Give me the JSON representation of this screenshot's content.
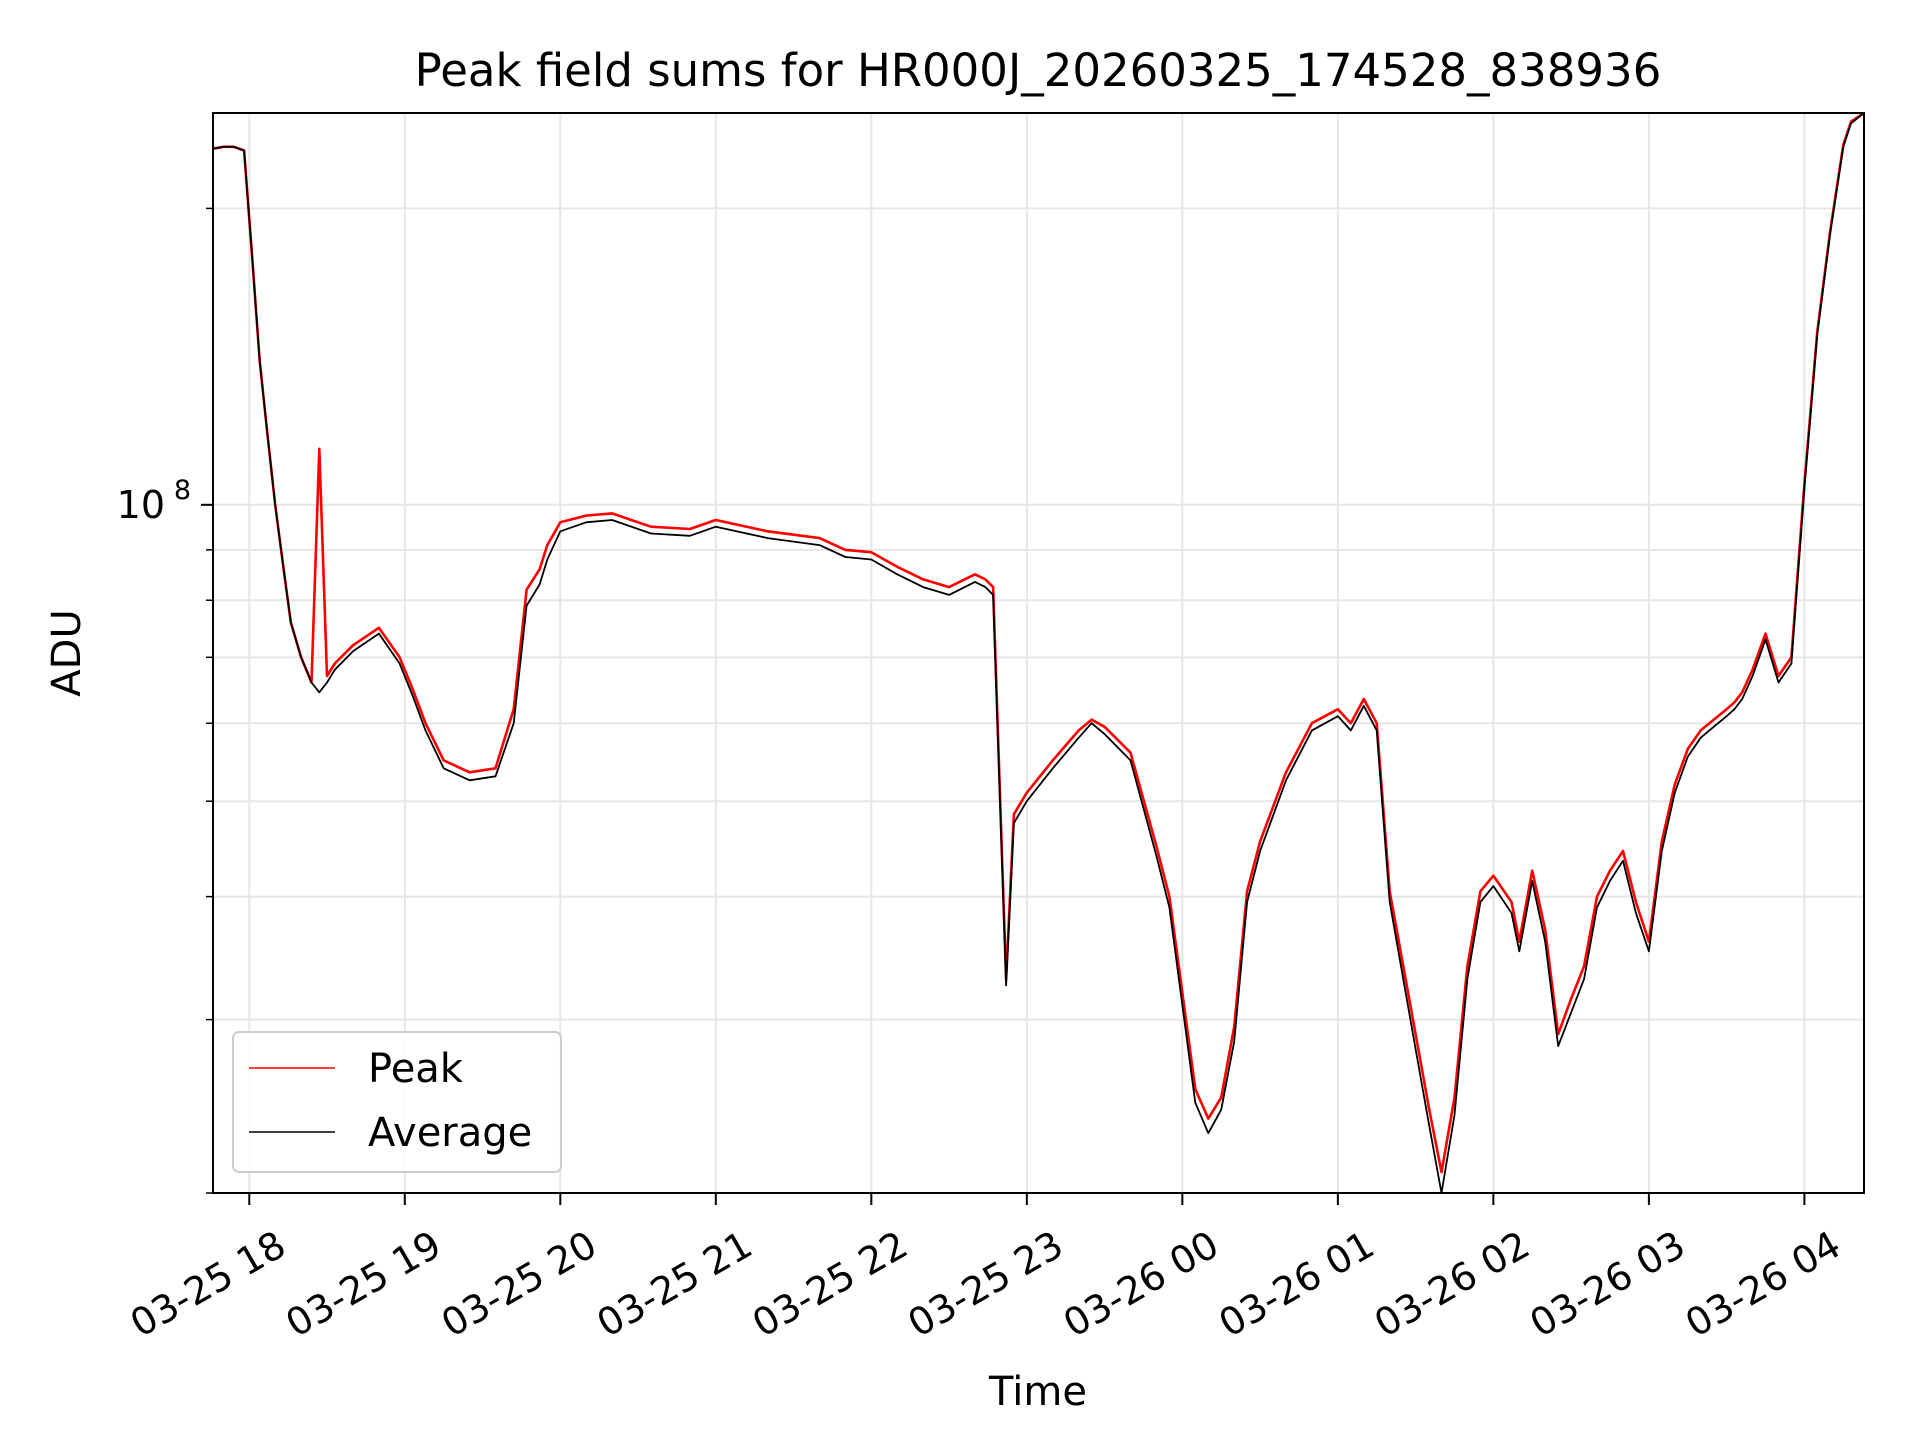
{
  "chart_data": {
    "type": "line",
    "title": "Peak field sums for HR000J_20260325_174528_838936",
    "xlabel": "Time",
    "ylabel": "ADU",
    "y_scale": "log",
    "ylim": [
      20000000,
      250000000
    ],
    "grid": true,
    "legend_position": "lower-left",
    "x_ticks": [
      "03-25 18",
      "03-25 19",
      "03-25 20",
      "03-25 21",
      "03-25 22",
      "03-25 23",
      "03-26 00",
      "03-26 01",
      "03-26 02",
      "03-26 03",
      "03-26 04"
    ],
    "y_major_ticks": [
      {
        "value": 100000000,
        "base": "10",
        "exp": "8"
      }
    ],
    "y_minor_ticks": [
      20000000,
      30000000,
      40000000,
      50000000,
      60000000,
      70000000,
      80000000,
      90000000,
      200000000
    ],
    "x_range": [
      "03-25 17:46",
      "03-26 04:23"
    ],
    "x": [
      "03-25 17:46",
      "03-25 17:50",
      "03-25 17:54",
      "03-25 17:58",
      "03-25 18:01",
      "03-25 18:04",
      "03-25 18:07",
      "03-25 18:10",
      "03-25 18:13",
      "03-25 18:16",
      "03-25 18:20",
      "03-25 18:24",
      "03-25 18:27",
      "03-25 18:30",
      "03-25 18:33",
      "03-25 18:40",
      "03-25 18:50",
      "03-25 18:58",
      "03-25 19:03",
      "03-25 19:08",
      "03-25 19:15",
      "03-25 19:25",
      "03-25 19:35",
      "03-25 19:42",
      "03-25 19:47",
      "03-25 19:52",
      "03-25 19:55",
      "03-25 20:00",
      "03-25 20:10",
      "03-25 20:20",
      "03-25 20:35",
      "03-25 20:50",
      "03-25 21:00",
      "03-25 21:20",
      "03-25 21:40",
      "03-25 21:50",
      "03-25 22:00",
      "03-25 22:10",
      "03-25 22:20",
      "03-25 22:30",
      "03-25 22:40",
      "03-25 22:44",
      "03-25 22:47",
      "03-25 22:52",
      "03-25 22:55",
      "03-25 23:00",
      "03-25 23:10",
      "03-25 23:20",
      "03-25 23:25",
      "03-25 23:30",
      "03-25 23:40",
      "03-25 23:50",
      "03-25 23:55",
      "03-26 00:05",
      "03-26 00:10",
      "03-26 00:15",
      "03-26 00:20",
      "03-26 00:25",
      "03-26 00:30",
      "03-26 00:40",
      "03-26 00:50",
      "03-26 01:00",
      "03-26 01:05",
      "03-26 01:10",
      "03-26 01:15",
      "03-26 01:20",
      "03-26 01:30",
      "03-26 01:35",
      "03-26 01:40",
      "03-26 01:45",
      "03-26 01:50",
      "03-26 01:55",
      "03-26 02:00",
      "03-26 02:07",
      "03-26 02:10",
      "03-26 02:15",
      "03-26 02:20",
      "03-26 02:25",
      "03-26 02:30",
      "03-26 02:35",
      "03-26 02:40",
      "03-26 02:45",
      "03-26 02:50",
      "03-26 02:55",
      "03-26 03:00",
      "03-26 03:05",
      "03-26 03:10",
      "03-26 03:15",
      "03-26 03:20",
      "03-26 03:25",
      "03-26 03:30",
      "03-26 03:33",
      "03-26 03:36",
      "03-26 03:40",
      "03-26 03:45",
      "03-26 03:50",
      "03-26 03:55",
      "03-26 04:00",
      "03-26 04:05",
      "03-26 04:10",
      "03-26 04:15",
      "03-26 04:18",
      "03-26 04:23"
    ],
    "series": [
      {
        "name": "Peak",
        "color": "#ff0000",
        "values": [
          230000000,
          231000000,
          231000000,
          229000000,
          180000000,
          140000000,
          118000000,
          100000000,
          87000000,
          76000000,
          70000000,
          66000000,
          114000000,
          67000000,
          69000000,
          72000000,
          75000000,
          70000000,
          65000000,
          60000000,
          55000000,
          53500000,
          54000000,
          62000000,
          82000000,
          86000000,
          91000000,
          96000000,
          97500000,
          98000000,
          95000000,
          94500000,
          96500000,
          94000000,
          92500000,
          90000000,
          89500000,
          86500000,
          84000000,
          82500000,
          85000000,
          84000000,
          82500000,
          33000000,
          48500000,
          51000000,
          55000000,
          59000000,
          60500000,
          59500000,
          56000000,
          45000000,
          40000000,
          25500000,
          23800000,
          25000000,
          29500000,
          40500000,
          45500000,
          53500000,
          60000000,
          62000000,
          60000000,
          63500000,
          60000000,
          40500000,
          29000000,
          24500000,
          21000000,
          25000000,
          34000000,
          40500000,
          42000000,
          39500000,
          36000000,
          42500000,
          37000000,
          29000000,
          31500000,
          34000000,
          40000000,
          42500000,
          44500000,
          39500000,
          36000000,
          45500000,
          52000000,
          56500000,
          59000000,
          60500000,
          62000000,
          63000000,
          64500000,
          68000000,
          74000000,
          67000000,
          70000000,
          105000000,
          150000000,
          190000000,
          232000000,
          245000000,
          250000000
        ]
      },
      {
        "name": "Average",
        "color": "#000000",
        "values": [
          230000000,
          231000000,
          231000000,
          229000000,
          180000000,
          140000000,
          118000000,
          100000000,
          87000000,
          76000000,
          70000000,
          66000000,
          64500000,
          66000000,
          68000000,
          71000000,
          74000000,
          69000000,
          64000000,
          59000000,
          54000000,
          52500000,
          53000000,
          60000000,
          79000000,
          83000000,
          88000000,
          94000000,
          96000000,
          96500000,
          93500000,
          93000000,
          95000000,
          92500000,
          91000000,
          88500000,
          88000000,
          85000000,
          82500000,
          81000000,
          83500000,
          82500000,
          81000000,
          32500000,
          47500000,
          50000000,
          54000000,
          58000000,
          60000000,
          58500000,
          55000000,
          44000000,
          39000000,
          24700000,
          23000000,
          24300000,
          28500000,
          39500000,
          44500000,
          52500000,
          59000000,
          61000000,
          59000000,
          62500000,
          59000000,
          39500000,
          28000000,
          23600000,
          20000000,
          24000000,
          33000000,
          39500000,
          41000000,
          38500000,
          35200000,
          41500000,
          36000000,
          28200000,
          30500000,
          33000000,
          39000000,
          41500000,
          43500000,
          38500000,
          35200000,
          44500000,
          51000000,
          55500000,
          58000000,
          59500000,
          61000000,
          62000000,
          63500000,
          67000000,
          73000000,
          66000000,
          69000000,
          104000000,
          149000000,
          189000000,
          231000000,
          244000000,
          250000000
        ]
      }
    ]
  }
}
